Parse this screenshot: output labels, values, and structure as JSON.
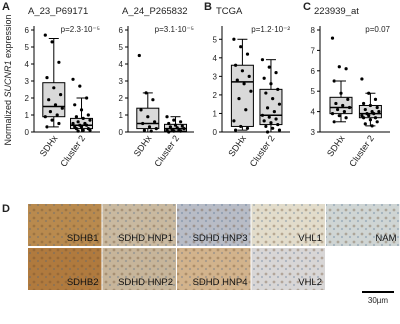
{
  "panel_letters": [
    "A",
    "B",
    "C",
    "D"
  ],
  "y_axis_label": {
    "pre": "Normalized ",
    "gene": "SUCNR1",
    "post": " expression"
  },
  "chart_data": [
    {
      "type": "box",
      "title": "A_23_P69171",
      "p_label": "p=2.3·10⁻⁵",
      "categories": [
        "SDHx",
        "Cluster 2"
      ],
      "ylim": [
        0,
        6
      ],
      "yticks": [
        0,
        1,
        2,
        3,
        4,
        5,
        6
      ],
      "series": [
        {
          "name": "SDHx",
          "color": "#d9d9d9",
          "stats": [
            0.3,
            0.9,
            1.5,
            2.9,
            5.5
          ],
          "points": [
            5.7,
            5.3,
            4.1,
            3.2,
            2.6,
            2.2,
            1.9,
            1.6,
            1.4,
            1.2,
            1.0,
            0.9,
            0.7,
            0.5,
            0.3
          ]
        },
        {
          "name": "Cluster 2",
          "color": "#d9d9d9",
          "stats": [
            0,
            0.2,
            0.4,
            0.8,
            2.0
          ],
          "points": [
            3.1,
            2.7,
            2.0,
            1.6,
            1.3,
            1.0,
            0.9,
            0.8,
            0.7,
            0.6,
            0.5,
            0.5,
            0.4,
            0.4,
            0.3,
            0.3,
            0.2,
            0.2,
            0.1,
            0.1,
            0.05
          ]
        }
      ]
    },
    {
      "type": "box",
      "title": "A_24_P265832",
      "p_label": "p=3.1·10⁻⁵",
      "categories": [
        "SDHx",
        "Cluster 2"
      ],
      "ylim": [
        0,
        6
      ],
      "yticks": [
        0,
        1,
        2,
        3,
        4,
        5,
        6
      ],
      "series": [
        {
          "name": "SDHx",
          "color": "#d9d9d9",
          "stats": [
            0,
            0.2,
            0.5,
            1.4,
            2.3
          ],
          "points": [
            4.5,
            2.3,
            1.9,
            1.3,
            0.9,
            0.6,
            0.5,
            0.3,
            0.2,
            0.1,
            0.05
          ]
        },
        {
          "name": "Cluster 2",
          "color": "#d9d9d9",
          "stats": [
            0,
            0.05,
            0.2,
            0.45,
            0.9
          ],
          "points": [
            0.9,
            0.7,
            0.6,
            0.5,
            0.4,
            0.35,
            0.3,
            0.25,
            0.2,
            0.15,
            0.1,
            0.1,
            0.05,
            0.05,
            0
          ]
        }
      ]
    },
    {
      "type": "box",
      "title": "TCGA",
      "p_label": "p=1.2·10⁻²",
      "categories": [
        "SDHx",
        "Cluster 2"
      ],
      "ylim": [
        0,
        5.5
      ],
      "yticks": [
        0,
        1,
        2,
        3,
        4,
        5
      ],
      "series": [
        {
          "name": "SDHx",
          "color": "#d9d9d9",
          "stats": [
            0.1,
            0.3,
            2.7,
            3.6,
            5.0
          ],
          "points": [
            5.0,
            4.6,
            4.2,
            3.6,
            3.3,
            3.0,
            2.8,
            2.6,
            2.2,
            1.8,
            1.2,
            0.6,
            0.3,
            0.2,
            0.1
          ]
        },
        {
          "name": "Cluster 2",
          "color": "#d9d9d9",
          "stats": [
            0,
            0.4,
            0.9,
            2.3,
            3.9
          ],
          "points": [
            3.9,
            3.5,
            3.2,
            2.9,
            2.6,
            2.3,
            2.1,
            1.8,
            1.5,
            1.3,
            1.1,
            0.9,
            0.8,
            0.7,
            0.6,
            0.5,
            0.4,
            0.3,
            0.2,
            0.1,
            0
          ]
        }
      ]
    },
    {
      "type": "box",
      "title": "223939_at",
      "p_label": "p=0.07",
      "categories": [
        "SDHx",
        "Cluster 2"
      ],
      "ylim": [
        3,
        8
      ],
      "yticks": [
        3,
        4,
        5,
        6,
        7,
        8
      ],
      "series": [
        {
          "name": "SDHx",
          "color": "#d9d9d9",
          "stats": [
            3.5,
            3.9,
            4.2,
            4.7,
            5.5
          ],
          "points": [
            7.6,
            6.2,
            6.1,
            5.5,
            4.9,
            4.6,
            4.4,
            4.3,
            4.2,
            4.1,
            4.0,
            3.9,
            3.8,
            3.7,
            3.5
          ]
        },
        {
          "name": "Cluster 2",
          "color": "#d9d9d9",
          "stats": [
            3.3,
            3.7,
            3.9,
            4.3,
            4.9
          ],
          "points": [
            5.6,
            4.9,
            4.6,
            4.4,
            4.3,
            4.2,
            4.1,
            4.0,
            4.0,
            3.9,
            3.9,
            3.8,
            3.8,
            3.7,
            3.7,
            3.6,
            3.5,
            3.4,
            3.3
          ]
        }
      ]
    }
  ],
  "micrographs": {
    "panels": [
      "SDHB1",
      "SDHD HNP1",
      "SDHD HNP3",
      "VHL1",
      "NAM",
      "SDHB2",
      "SDHD HNP2",
      "SDHD HNP4",
      "VHL2"
    ],
    "scale_bar": "30µm"
  }
}
